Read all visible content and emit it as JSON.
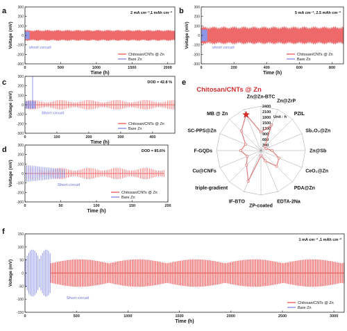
{
  "colors": {
    "chitosan": "#ee6a6a",
    "bare": "#8f96e6",
    "axis": "#222222",
    "star": "#e02b2b",
    "radar_line": "#e07a7a",
    "title_red": "#d42a2a"
  },
  "chart_data": [
    {
      "id": "a",
      "panel_label": "a",
      "type": "line",
      "condition": "2 mA cm⁻²,1 mAh cm⁻²",
      "xlabel": "Time (h)",
      "ylabel": "Voltage (mV)",
      "xticks": [
        0,
        500,
        1000,
        1500,
        2000
      ],
      "xlim": [
        0,
        2100
      ],
      "yticks": [
        -300,
        -200,
        -100,
        0,
        100,
        200,
        300
      ],
      "ylim": [
        -300,
        300
      ],
      "annotation": "short circuit",
      "series": [
        {
          "name": "Chitosan/CNTs @ Zn",
          "color_key": "chitosan",
          "x_range": [
            0,
            2100
          ],
          "amplitude_mv": [
            -50,
            50
          ]
        },
        {
          "name": "Bare Zn",
          "color_key": "bare",
          "x_range": [
            0,
            60
          ],
          "amplitude_mv": [
            -40,
            40
          ]
        }
      ]
    },
    {
      "id": "b",
      "panel_label": "b",
      "type": "line",
      "condition": "5 mA cm⁻², 2.5 mAh cm⁻²",
      "xlabel": "Time (h)",
      "ylabel": "Voltage (mV)",
      "xticks": [
        0,
        200,
        400,
        600,
        800
      ],
      "xlim": [
        0,
        870
      ],
      "yticks": [
        -300,
        -200,
        -100,
        0,
        100,
        200,
        300
      ],
      "ylim": [
        -300,
        300
      ],
      "annotation": "short circuit",
      "series": [
        {
          "name": "Chitosan/CNTs @ Zn",
          "color_key": "chitosan",
          "x_range": [
            0,
            870
          ],
          "amplitude_mv": [
            -80,
            80
          ]
        },
        {
          "name": "Bare Zn",
          "color_key": "bare",
          "x_range": [
            0,
            35
          ],
          "amplitude_mv": [
            -60,
            60
          ]
        }
      ]
    },
    {
      "id": "c",
      "panel_label": "c",
      "type": "line",
      "condition": "DOD = 42.8 %",
      "xlabel": "Time (h)",
      "ylabel": "Voltage (mV)",
      "xticks": [
        0,
        100,
        200,
        300,
        400
      ],
      "xlim": [
        0,
        470
      ],
      "yticks": [
        -300,
        -200,
        -100,
        0,
        100,
        200,
        300
      ],
      "ylim": [
        -300,
        300
      ],
      "annotation": "Short circuit",
      "series": [
        {
          "name": "Chitosan/CNTs @ Zn",
          "color_key": "chitosan",
          "x_range": [
            0,
            470
          ],
          "amplitude_mv": [
            -50,
            50
          ]
        },
        {
          "name": "Bare Zn",
          "color_key": "bare",
          "x_range": [
            0,
            32
          ],
          "amplitude_mv": [
            -40,
            300
          ]
        }
      ]
    },
    {
      "id": "d",
      "panel_label": "d",
      "type": "line",
      "condition": "DOD = 85.6%",
      "xlabel": "Time (h)",
      "ylabel": "Voltage (mV)",
      "xticks": [
        0,
        50,
        100,
        150,
        200
      ],
      "xlim": [
        0,
        200
      ],
      "yticks": [
        -300,
        -200,
        -100,
        0,
        100,
        200,
        300
      ],
      "ylim": [
        -300,
        300
      ],
      "annotation": "Short circuit",
      "series": [
        {
          "name": "Chitosan/CNTs @ Zn",
          "color_key": "chitosan",
          "x_range": [
            0,
            195
          ],
          "amplitude_mv": [
            -60,
            60
          ]
        },
        {
          "name": "Bare Zn",
          "color_key": "bare",
          "x_range": [
            0,
            55
          ],
          "amplitude_mv": [
            -90,
            90
          ]
        }
      ]
    },
    {
      "id": "e",
      "panel_label": "e",
      "type": "radar",
      "title": "Chitosan/CNTs @ Zn",
      "unit_label": "Unit : h",
      "rticks": [
        300,
        600,
        900,
        1200,
        1500,
        1800,
        2100,
        2400
      ],
      "rmax": 2400,
      "categories": [
        "Zn@Zn-BTC",
        "Zn@ZrP",
        "PZIL",
        "Sb₂O₃@Zn",
        "Zn@Sb",
        "CeO₂@Zn",
        "PDA@Zn",
        "EDTA-2Na",
        "ZP-coated",
        "IF-BTO",
        "triple-gradient",
        "Cu@CNFs",
        "F-GQDs",
        "SC-PPS@Zn",
        "MB @ Zn",
        "Chitosan/CNTs @ Zn"
      ],
      "values": [
        1000,
        1500,
        300,
        300,
        600,
        1050,
        1200,
        600,
        280,
        1800,
        1100,
        800,
        1100,
        900,
        1500,
        2100
      ]
    },
    {
      "id": "f",
      "panel_label": "f",
      "type": "line",
      "condition": "1 mA cm⁻² ,1 mAh cm⁻²",
      "xlabel": "Time (h)",
      "ylabel": "Voltage (mV)",
      "xticks": [
        0,
        500,
        1000,
        1500,
        2000,
        2500,
        3000
      ],
      "xlim": [
        0,
        3100
      ],
      "yticks": [
        -150,
        -100,
        -50,
        0,
        50,
        100,
        150
      ],
      "ylim": [
        -150,
        150
      ],
      "annotation": "Short circuit",
      "series": [
        {
          "name": "Chitosan/CNTs @ Zn",
          "color_key": "chitosan",
          "x_range": [
            250,
            3100
          ],
          "amplitude_mv": [
            -50,
            50
          ]
        },
        {
          "name": "Bare Zn",
          "color_key": "bare",
          "x_range": [
            0,
            250
          ],
          "amplitude_mv": [
            -90,
            90
          ]
        }
      ]
    }
  ]
}
